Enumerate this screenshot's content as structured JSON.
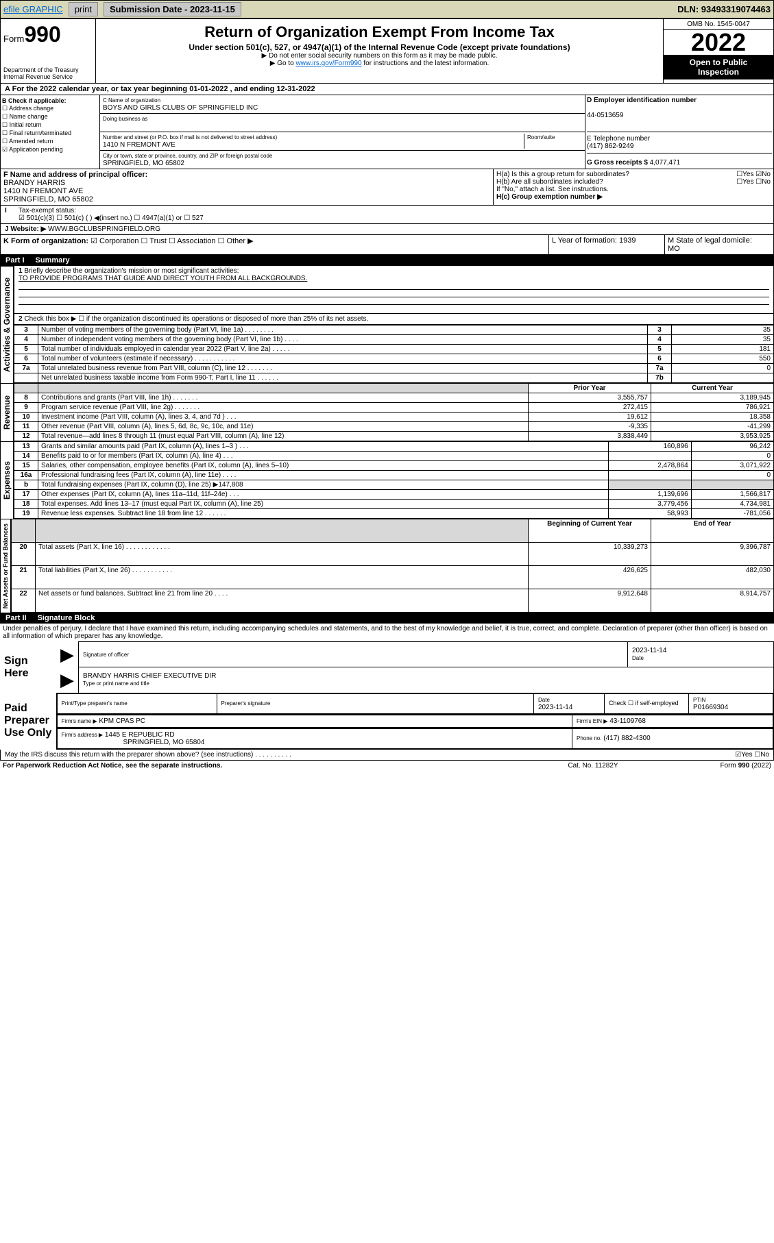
{
  "topbar": {
    "efile": "efile GRAPHIC",
    "print": "print",
    "subdate_lbl": "Submission Date - 2023-11-15",
    "dln": "DLN: 93493319074463"
  },
  "header": {
    "form": "Form",
    "n990": "990",
    "title": "Return of Organization Exempt From Income Tax",
    "sub": "Under section 501(c), 527, or 4947(a)(1) of the Internal Revenue Code (except private foundations)",
    "note1": "▶ Do not enter social security numbers on this form as it may be made public.",
    "note2": "▶ Go to www.irs.gov/Form990 for instructions and the latest information.",
    "dept": "Department of the Treasury",
    "irs": "Internal Revenue Service",
    "omb": "OMB No. 1545-0047",
    "year": "2022",
    "open": "Open to Public",
    "insp": "Inspection"
  },
  "A": {
    "line": "For the 2022 calendar year, or tax year beginning 01-01-2022  , and ending 12-31-2022"
  },
  "B": {
    "hdr": "B Check if applicable:",
    "items": [
      "☐ Address change",
      "☐ Name change",
      "☐ Initial return",
      "☐ Final return/terminated",
      "☐ Amended return",
      "☑ Application pending"
    ]
  },
  "C": {
    "namelbl": "C Name of organization",
    "name": "BOYS AND GIRLS CLUBS OF SPRINGFIELD INC",
    "dba_lbl": "Doing business as",
    "dba": "",
    "addr_lbl": "Number and street (or P.O. box if mail is not delivered to street address)",
    "room_lbl": "Room/suite",
    "addr": "1410 N FREMONT AVE",
    "city_lbl": "City or town, state or province, country, and ZIP or foreign postal code",
    "city": "SPRINGFIELD, MO  65802"
  },
  "D": {
    "lbl": "D Employer identification number",
    "val": "44-0513659"
  },
  "E": {
    "lbl": "E Telephone number",
    "val": "(417) 862-9249"
  },
  "G": {
    "lbl": "G Gross receipts $",
    "val": "4,077,471"
  },
  "F": {
    "lbl": "F  Name and address of principal officer:",
    "name": "BRANDY HARRIS",
    "addr1": "1410 N FREMONT AVE",
    "addr2": "SPRINGFIELD, MO  65802"
  },
  "H": {
    "a": "H(a)  Is this a group return for subordinates?",
    "a_ans": "☐Yes ☑No",
    "b": "H(b)  Are all subordinates included?",
    "b_ans": "☐Yes ☐No",
    "note": "If \"No,\" attach a list. See instructions.",
    "c": "H(c)  Group exemption number ▶"
  },
  "I": {
    "lbl": "Tax-exempt status:",
    "opts": "☑ 501(c)(3)   ☐ 501(c) (  ) ◀(insert no.)   ☐ 4947(a)(1) or  ☐ 527"
  },
  "J": {
    "lbl": "Website: ▶",
    "val": "WWW.BGCLUBSPRINGFIELD.ORG"
  },
  "K": {
    "lbl": "K Form of organization:",
    "opts": "☑ Corporation  ☐ Trust  ☐ Association  ☐ Other ▶"
  },
  "L": {
    "lbl": "L Year of formation: 1939"
  },
  "M": {
    "lbl": "M State of legal domicile:",
    "val": "MO"
  },
  "part1": {
    "hdr": "Part I",
    "title": "Summary"
  },
  "p1": {
    "l1": "Briefly describe the organization's mission or most significant activities:",
    "mission": "TO PROVIDE PROGRAMS THAT GUIDE AND DIRECT YOUTH FROM ALL BACKGROUNDS.",
    "l2": "Check this box ▶ ☐  if the organization discontinued its operations or disposed of more than 25% of its net assets.",
    "rows": [
      {
        "n": "3",
        "t": "Number of voting members of the governing body (Part VI, line 1a)  .  .  .  .  .  .  .  .",
        "b": "3",
        "v": "35"
      },
      {
        "n": "4",
        "t": "Number of independent voting members of the governing body (Part VI, line 1b)  .  .  .  .",
        "b": "4",
        "v": "35"
      },
      {
        "n": "5",
        "t": "Total number of individuals employed in calendar year 2022 (Part V, line 2a)  .  .  .  .  .",
        "b": "5",
        "v": "181"
      },
      {
        "n": "6",
        "t": "Total number of volunteers (estimate if necessary)  .  .  .  .  .  .  .  .  .  .  .",
        "b": "6",
        "v": "550"
      },
      {
        "n": "7a",
        "t": "Total unrelated business revenue from Part VIII, column (C), line 12  .  .  .  .  .  .  .",
        "b": "7a",
        "v": "0"
      },
      {
        "n": "",
        "t": "Net unrelated business taxable income from Form 990-T, Part I, line 11  .  .  .  .  .  .",
        "b": "7b",
        "v": ""
      }
    ],
    "py": "Prior Year",
    "cy": "Current Year",
    "rev": [
      {
        "n": "8",
        "t": "Contributions and grants (Part VIII, line 1h)  .  .  .  .  .  .  .",
        "p": "3,555,757",
        "c": "3,189,945"
      },
      {
        "n": "9",
        "t": "Program service revenue (Part VIII, line 2g)  .  .  .  .  .  .  .",
        "p": "272,415",
        "c": "786,921"
      },
      {
        "n": "10",
        "t": "Investment income (Part VIII, column (A), lines 3, 4, and 7d )  .  .  .",
        "p": "19,612",
        "c": "18,358"
      },
      {
        "n": "11",
        "t": "Other revenue (Part VIII, column (A), lines 5, 6d, 8c, 9c, 10c, and 11e)",
        "p": "-9,335",
        "c": "-41,299"
      },
      {
        "n": "12",
        "t": "Total revenue—add lines 8 through 11 (must equal Part VIII, column (A), line 12)",
        "p": "3,838,449",
        "c": "3,953,925"
      }
    ],
    "exp": [
      {
        "n": "13",
        "t": "Grants and similar amounts paid (Part IX, column (A), lines 1–3 )  .  .  .",
        "p": "160,896",
        "c": "96,242"
      },
      {
        "n": "14",
        "t": "Benefits paid to or for members (Part IX, column (A), line 4)  .  .  .",
        "p": "",
        "c": "0"
      },
      {
        "n": "15",
        "t": "Salaries, other compensation, employee benefits (Part IX, column (A), lines 5–10)",
        "p": "2,478,864",
        "c": "3,071,922"
      },
      {
        "n": "16a",
        "t": "Professional fundraising fees (Part IX, column (A), line 11e)  .  .  .  .",
        "p": "",
        "c": "0"
      },
      {
        "n": "b",
        "t": "Total fundraising expenses (Part IX, column (D), line 25) ▶147,808",
        "p": "grey",
        "c": "grey"
      },
      {
        "n": "17",
        "t": "Other expenses (Part IX, column (A), lines 11a–11d, 11f–24e)  .  .  .",
        "p": "1,139,696",
        "c": "1,566,817"
      },
      {
        "n": "18",
        "t": "Total expenses. Add lines 13–17 (must equal Part IX, column (A), line 25)",
        "p": "3,779,456",
        "c": "4,734,981"
      },
      {
        "n": "19",
        "t": "Revenue less expenses. Subtract line 18 from line 12  .  .  .  .  .  .",
        "p": "58,993",
        "c": "-781,056"
      }
    ],
    "bcy": "Beginning of Current Year",
    "ey": "End of Year",
    "net": [
      {
        "n": "20",
        "t": "Total assets (Part X, line 16)  .  .  .  .  .  .  .  .  .  .  .  .",
        "p": "10,339,273",
        "c": "9,396,787"
      },
      {
        "n": "21",
        "t": "Total liabilities (Part X, line 26)  .  .  .  .  .  .  .  .  .  .  .",
        "p": "426,625",
        "c": "482,030"
      },
      {
        "n": "22",
        "t": "Net assets or fund balances. Subtract line 21 from line 20  .  .  .  .",
        "p": "9,912,648",
        "c": "8,914,757"
      }
    ]
  },
  "tabs": {
    "gov": "Activities & Governance",
    "rev": "Revenue",
    "exp": "Expenses",
    "net": "Net Assets or Fund Balances"
  },
  "part2": {
    "hdr": "Part II",
    "title": "Signature Block",
    "decl": "Under penalties of perjury, I declare that I have examined this return, including accompanying schedules and statements, and to the best of my knowledge and belief, it is true, correct, and complete. Declaration of preparer (other than officer) is based on all information of which preparer has any knowledge."
  },
  "sign": {
    "here": "Sign Here",
    "sig_lbl": "Signature of officer",
    "date_lbl": "Date",
    "date": "2023-11-14",
    "name": "BRANDY HARRIS  CHIEF EXECUTIVE DIR",
    "type_lbl": "Type or print name and title"
  },
  "paid": {
    "hdr": "Paid Preparer Use Only",
    "c1": "Print/Type preparer's name",
    "c2": "Preparer's signature",
    "c3": "Date",
    "c3v": "2023-11-14",
    "c4": "Check ☐ if self-employed",
    "c5": "PTIN",
    "c5v": "P01669304",
    "firm_lbl": "Firm's name   ▶",
    "firm": "KPM CPAS PC",
    "ein_lbl": "Firm's EIN ▶",
    "ein": "43-1109768",
    "addr_lbl": "Firm's address ▶",
    "addr1": "1445 E REPUBLIC RD",
    "addr2": "SPRINGFIELD, MO  65804",
    "ph_lbl": "Phone no.",
    "ph": "(417) 882-4300"
  },
  "footer": {
    "q": "May the IRS discuss this return with the preparer shown above? (see instructions)  .  .  .  .  .  .  .  .  .  .",
    "ans": "☑Yes  ☐No",
    "pra": "For Paperwork Reduction Act Notice, see the separate instructions.",
    "cat": "Cat. No. 11282Y",
    "form": "Form 990 (2022)"
  }
}
